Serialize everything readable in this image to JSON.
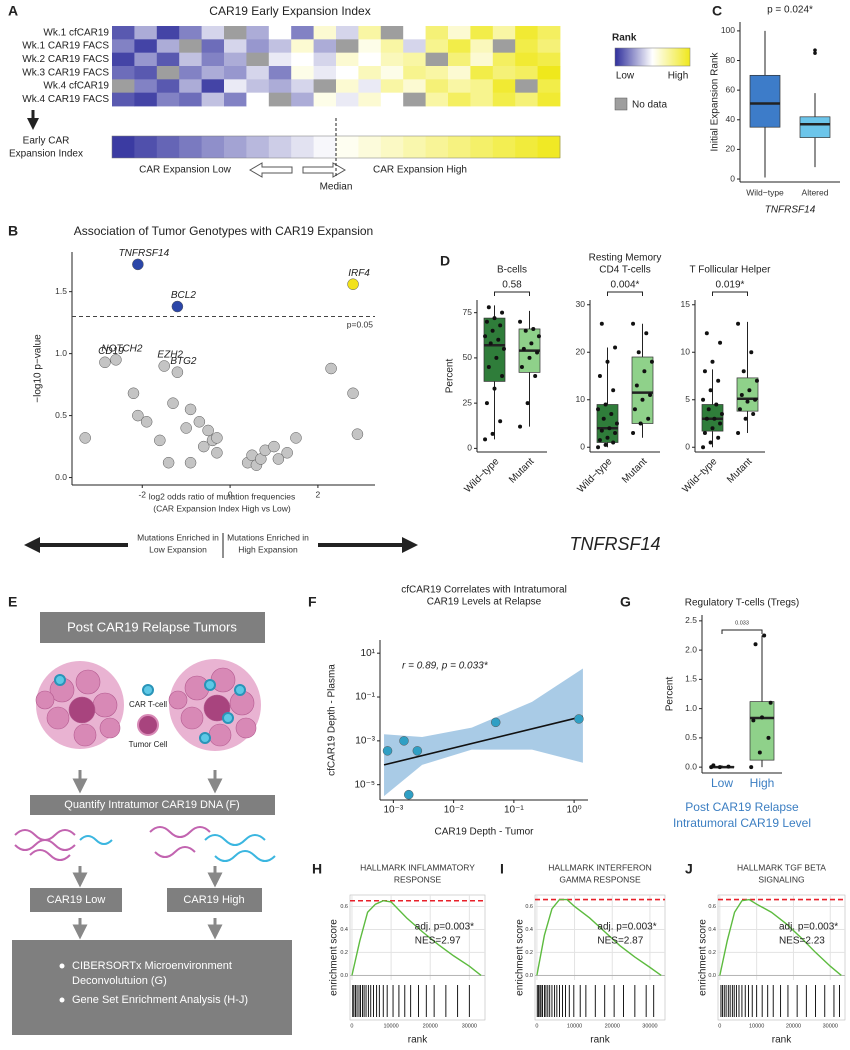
{
  "chart_data": [
    {
      "type": "heatmap",
      "panel": "A",
      "title": "CAR19 Early Expansion Index",
      "rows": [
        {
          "name": "Wk.1 cfCAR19",
          "values": [
            0.1,
            0.3,
            0.05,
            0.2,
            0.4,
            null,
            0.3,
            0.5,
            0.2,
            0.6,
            0.4,
            0.7,
            null,
            0.5,
            0.8,
            0.6,
            0.9,
            0.7,
            0.95,
            0.85
          ]
        },
        {
          "name": "Wk.1 CAR19 FACS",
          "values": [
            0.2,
            0.05,
            0.3,
            null,
            0.15,
            0.4,
            0.25,
            0.35,
            0.6,
            0.3,
            null,
            0.55,
            0.7,
            0.4,
            0.75,
            0.9,
            0.65,
            null,
            0.9,
            0.8
          ]
        },
        {
          "name": "Wk.2 CAR19 FACS",
          "values": [
            0.05,
            0.25,
            0.1,
            0.35,
            0.2,
            0.3,
            null,
            0.45,
            0.5,
            0.4,
            0.6,
            0.5,
            0.65,
            0.7,
            null,
            0.8,
            0.6,
            0.85,
            0.95,
            0.9
          ]
        },
        {
          "name": "Wk.3 CAR19 FACS",
          "values": [
            0.15,
            0.1,
            null,
            0.2,
            0.3,
            0.25,
            0.4,
            0.2,
            0.55,
            0.45,
            0.5,
            0.65,
            0.55,
            0.75,
            0.7,
            0.6,
            0.9,
            0.8,
            0.85,
            1.0
          ]
        },
        {
          "name": "Wk.4 cfCAR19",
          "values": [
            null,
            0.2,
            0.1,
            0.3,
            0.05,
            0.45,
            0.35,
            0.3,
            0.4,
            null,
            0.6,
            0.45,
            0.7,
            0.6,
            0.8,
            0.7,
            0.75,
            0.95,
            null,
            0.9
          ]
        },
        {
          "name": "Wk.4 CAR19 FACS",
          "values": [
            0.1,
            0.05,
            0.2,
            0.15,
            0.35,
            0.2,
            0.5,
            null,
            0.3,
            0.55,
            0.45,
            0.6,
            0.5,
            null,
            0.7,
            0.85,
            0.75,
            0.9,
            0.8,
            0.95
          ]
        }
      ],
      "index": {
        "name": [
          "Early CAR",
          "Expansion Index"
        ],
        "values": [
          0.03,
          0.08,
          0.13,
          0.18,
          0.23,
          0.28,
          0.33,
          0.38,
          0.43,
          0.48,
          0.53,
          0.58,
          0.63,
          0.68,
          0.73,
          0.78,
          0.83,
          0.88,
          0.93,
          0.98
        ]
      },
      "index_labels": {
        "low": "CAR Expansion Low",
        "median": "Median",
        "high": "CAR Expansion High"
      },
      "colors": [
        "#2f2f9c",
        "#ffffff",
        "#efe81c"
      ],
      "nodata_color": "#9e9e9e",
      "legend": {
        "title": "Rank",
        "low": "Low",
        "high": "High",
        "nodata": "No data"
      }
    },
    {
      "type": "box",
      "panel": "C",
      "title": "p = 0.024*",
      "ylabel": "Initial Expansion Rank",
      "xlabel": "TNFRSF14",
      "ylim": [
        -2,
        106
      ],
      "yticks": [
        0,
        20,
        40,
        60,
        80,
        100
      ],
      "groups": [
        {
          "name": "Wild−type",
          "color": "#3d7cc9",
          "stats": {
            "min": 1,
            "q1": 35,
            "median": 51,
            "q3": 70,
            "max": 100
          }
        },
        {
          "name": "Altered",
          "color": "#6cc5ea",
          "stats": {
            "min": 8,
            "q1": 28,
            "median": 37,
            "q3": 42,
            "max": 58
          },
          "outliers": [
            85,
            87
          ]
        }
      ]
    },
    {
      "type": "scatter",
      "panel": "B",
      "title": "Association of Tumor Genotypes with CAR19 Expansion",
      "ylabel": "−log10 p−value",
      "xlabel": [
        "log2 odds ratio of mutation frequencies",
        "(CAR  Expansion Index High vs Low)"
      ],
      "xlim": [
        -3.6,
        3.3
      ],
      "xticks": [
        -2,
        0,
        2
      ],
      "ylim": [
        -0.06,
        1.82
      ],
      "yticks": [
        {
          "value": 0,
          "label": "0.0"
        },
        0.5,
        {
          "value": 1,
          "label": "1.0"
        },
        1.5
      ],
      "threshold": {
        "value": 1.3,
        "label": "p=0.05"
      },
      "x": [
        -2.1,
        -1.2,
        2.8,
        -2.6,
        -2.85,
        -1.5,
        -1.2,
        -3.3,
        -2.2,
        -2.1,
        -1.9,
        -1.6,
        -1.3,
        -1.0,
        -0.9,
        -0.7,
        -0.5,
        -0.4,
        -0.3,
        -0.6,
        -0.9,
        -1.4,
        -0.3,
        0.4,
        0.5,
        0.6,
        0.7,
        0.8,
        1.0,
        1.1,
        1.3,
        1.5,
        2.3,
        2.8,
        2.9
      ],
      "y": [
        1.72,
        1.38,
        1.56,
        0.95,
        0.93,
        0.9,
        0.85,
        0.32,
        0.68,
        0.5,
        0.45,
        0.3,
        0.6,
        0.4,
        0.55,
        0.45,
        0.38,
        0.3,
        0.2,
        0.25,
        0.12,
        0.12,
        0.32,
        0.12,
        0.18,
        0.1,
        0.15,
        0.22,
        0.25,
        0.15,
        0.2,
        0.32,
        0.88,
        0.68,
        0.35
      ],
      "point_labels": [
        "TNFRSF14",
        "BCL2",
        "IRF4",
        "NOTCH2",
        "CD19",
        "EZH2",
        "BTG2",
        null,
        null,
        null,
        null,
        null,
        null,
        null,
        null,
        null,
        null,
        null,
        null,
        null,
        null,
        null,
        null,
        null,
        null,
        null,
        null,
        null,
        null,
        null,
        null,
        null,
        null,
        null,
        null
      ],
      "colors": [
        "#2b46a8",
        "#2b46a8",
        "#f2e21a",
        "#c4c4c4",
        "#c4c4c4",
        "#c4c4c4",
        "#c4c4c4",
        "#c4c4c4",
        "#c4c4c4",
        "#c4c4c4",
        "#c4c4c4",
        "#c4c4c4",
        "#c4c4c4",
        "#c4c4c4",
        "#c4c4c4",
        "#c4c4c4",
        "#c4c4c4",
        "#c4c4c4",
        "#c4c4c4",
        "#c4c4c4",
        "#c4c4c4",
        "#c4c4c4",
        "#c4c4c4",
        "#c4c4c4",
        "#c4c4c4",
        "#c4c4c4",
        "#c4c4c4",
        "#c4c4c4",
        "#c4c4c4",
        "#c4c4c4",
        "#c4c4c4",
        "#c4c4c4",
        "#c4c4c4",
        "#c4c4c4",
        "#c4c4c4"
      ],
      "direction_labels": [
        [
          "Mutations Enriched in",
          "Low Expansion"
        ],
        [
          "Mutations Enriched in",
          "High Expansion"
        ]
      ]
    },
    {
      "type": "box",
      "panel": "D",
      "title": [
        "B-cells"
      ],
      "ylabel": "Percent",
      "p_label": "0.58",
      "ylim": [
        -2,
        82
      ],
      "yticks": [
        0,
        25,
        50,
        75
      ],
      "groups": [
        {
          "name": "Wild−type",
          "color": "#2f7d3a",
          "stats": {
            "min": 5,
            "q1": 37,
            "median": 57,
            "q3": 72,
            "max": 79
          },
          "points": [
            5,
            8,
            15,
            25,
            33,
            40,
            45,
            50,
            55,
            58,
            60,
            62,
            65,
            68,
            70,
            72,
            75,
            78
          ]
        },
        {
          "name": "Mutant",
          "color": "#8fd18a",
          "stats": {
            "min": 12,
            "q1": 42,
            "median": 54,
            "q3": 66,
            "max": 76
          },
          "points": [
            12,
            25,
            40,
            45,
            50,
            53,
            55,
            58,
            62,
            65,
            66,
            70
          ]
        }
      ]
    },
    {
      "type": "box",
      "title": [
        "Resting Memory",
        "CD4 T-cells"
      ],
      "p_label": "0.004*",
      "xlabel": "TNFRSF14",
      "ylim": [
        -1,
        31
      ],
      "yticks": [
        0,
        10,
        20,
        30
      ],
      "groups": [
        {
          "name": "Wild−type",
          "color": "#2f7d3a",
          "stats": {
            "min": 0,
            "q1": 1,
            "median": 4,
            "q3": 9,
            "max": 21
          },
          "points": [
            0,
            0.5,
            1,
            1.5,
            2,
            3,
            3.5,
            4,
            5,
            6,
            7,
            8,
            9,
            12,
            15,
            18,
            21,
            26
          ]
        },
        {
          "name": "Mutant",
          "color": "#8fd18a",
          "stats": {
            "min": 2,
            "q1": 5,
            "median": 11.5,
            "q3": 19,
            "max": 26
          },
          "points": [
            3,
            5,
            6,
            8,
            10,
            11,
            13,
            16,
            18,
            20,
            24,
            26
          ]
        }
      ]
    },
    {
      "type": "box",
      "title": [
        "T Follicular Helper"
      ],
      "p_label": "0.019*",
      "ylim": [
        -0.5,
        15.5
      ],
      "yticks": [
        0,
        5,
        10,
        15
      ],
      "groups": [
        {
          "name": "Wild−type",
          "color": "#2f7d3a",
          "stats": {
            "min": 0,
            "q1": 1.7,
            "median": 3,
            "q3": 4.5,
            "max": 8.2
          },
          "points": [
            0,
            0.5,
            1,
            1.5,
            2,
            2.5,
            3,
            3,
            3.5,
            4,
            4.5,
            5,
            6,
            7,
            8,
            9,
            11,
            12
          ]
        },
        {
          "name": "Mutant",
          "color": "#8fd18a",
          "stats": {
            "min": 1.5,
            "q1": 3.8,
            "median": 5.1,
            "q3": 7.3,
            "max": 13.2
          },
          "points": [
            1.5,
            3,
            3.5,
            4,
            4.8,
            5,
            5.5,
            6,
            7,
            8,
            10,
            13
          ]
        }
      ]
    },
    {
      "type": "scatter",
      "panel": "F",
      "log": true,
      "title": [
        "cfCAR19 Correlates with Intratumoral",
        "CAR19 Levels at Relapse"
      ],
      "ylabel": "cfCAR19 Depth - Plasma",
      "xlabel": [
        "CAR19 Depth - Tumor"
      ],
      "annotation": "r = 0.89, p = 0.033*",
      "xlim": [
        0.0006,
        1.7
      ],
      "xticks": [
        {
          "value": 0.001,
          "label": "10⁻³"
        },
        {
          "value": 0.01,
          "label": "10⁻²"
        },
        {
          "value": 0.1,
          "label": "10⁻¹"
        },
        {
          "value": 1,
          "label": "10⁰"
        }
      ],
      "ylim": [
        2e-06,
        40
      ],
      "yticks": [
        {
          "value": 1e-05,
          "label": "10⁻⁵"
        },
        {
          "value": 0.001,
          "label": "10⁻³"
        },
        {
          "value": 0.1,
          "label": "10⁻¹"
        },
        {
          "value": 10,
          "label": "10¹"
        }
      ],
      "x": [
        0.0008,
        0.0015,
        0.0025,
        0.0018,
        0.05,
        1.2
      ],
      "y": [
        0.00035,
        0.001,
        0.00035,
        3.5e-06,
        0.007,
        0.01
      ],
      "color": "#2f9fc4",
      "fit": {
        "x": [
          0.0007,
          1.4
        ],
        "y": [
          8e-05,
          0.013
        ]
      },
      "band": {
        "x": [
          0.0007,
          0.003,
          0.02,
          0.2,
          1.4
        ],
        "upper": [
          0.002,
          0.0015,
          0.004,
          0.06,
          2
        ],
        "lower": [
          3e-06,
          8e-05,
          0.0004,
          0.0004,
          0.0001
        ],
        "color": "#a9cbe6"
      }
    },
    {
      "type": "box",
      "panel": "G",
      "title": [
        "Regulatory T-cells (Tregs)"
      ],
      "ylabel": "Percent",
      "p_label": "0.033",
      "xlabel": [
        "Post CAR19 Relapse",
        "Intratumoral CAR19 Level"
      ],
      "tick_label_color": "#3b7ec2",
      "ylim": [
        -0.1,
        2.6
      ],
      "yticks": [
        {
          "value": 0,
          "label": "0.0"
        },
        0.5,
        {
          "value": 1,
          "label": "1.0"
        },
        1.5,
        {
          "value": 2,
          "label": "2.0"
        },
        2.5
      ],
      "groups": [
        {
          "name": "Low",
          "color": "#8fd18a",
          "stats": {
            "min": 0,
            "q1": 0,
            "median": 0,
            "q3": 0.01,
            "max": 0.03
          },
          "points": [
            0,
            0,
            0.01,
            0.03
          ]
        },
        {
          "name": "High",
          "color": "#8fd18a",
          "stats": {
            "min": 0,
            "q1": 0.12,
            "median": 0.84,
            "q3": 1.12,
            "max": 2.25
          },
          "points": [
            0,
            0.25,
            0.5,
            0.8,
            0.85,
            1.1,
            2.1,
            2.25
          ]
        }
      ]
    },
    {
      "type": "gsea",
      "panel": "H",
      "title": [
        "HALLMARK INFLAMMATORY",
        "RESPONSE"
      ],
      "annotation": [
        "adj. p=0.003*",
        "NES=2.97"
      ],
      "ylabel": "enrichment score",
      "xlabel": "rank",
      "xlim": [
        -500,
        34000
      ],
      "xticks": [
        0,
        10000,
        20000,
        30000
      ],
      "ylim": [
        -0.04,
        0.7
      ],
      "yticks": [
        {
          "value": 0,
          "label": "0.0"
        },
        0.2,
        0.4,
        0.6
      ],
      "color": "#5dbb3f",
      "rank": [
        0,
        2000,
        4000,
        6000,
        8000,
        10000,
        14000,
        18000,
        22000,
        26000,
        30000,
        33000
      ],
      "es": [
        0,
        0.3,
        0.55,
        0.62,
        0.65,
        0.64,
        0.5,
        0.38,
        0.27,
        0.17,
        0.08,
        0
      ],
      "hits": [
        200,
        500,
        900,
        1300,
        1800,
        2200,
        2700,
        3100,
        3600,
        4200,
        4800,
        5500,
        6300,
        7000,
        8000,
        9000,
        10500,
        12000,
        13500,
        15000,
        17000,
        19000,
        21000,
        24000,
        27000,
        30000
      ]
    },
    {
      "type": "gsea",
      "panel": "I",
      "title": [
        "HALLMARK INTERFERON",
        "GAMMA RESPONSE"
      ],
      "annotation": [
        "adj. p=0.003*",
        "NES=2.87"
      ],
      "ylabel": "enrichment score",
      "xlabel": "rank",
      "xlim": [
        -500,
        34000
      ],
      "xticks": [
        0,
        10000,
        20000,
        30000
      ],
      "ylim": [
        -0.04,
        0.7
      ],
      "yticks": [
        {
          "value": 0,
          "label": "0.0"
        },
        0.2,
        0.4,
        0.6
      ],
      "color": "#5dbb3f",
      "rank": [
        0,
        2000,
        4000,
        6000,
        8000,
        10000,
        14000,
        18000,
        22000,
        26000,
        30000,
        33000
      ],
      "es": [
        0,
        0.35,
        0.58,
        0.66,
        0.66,
        0.6,
        0.5,
        0.38,
        0.26,
        0.16,
        0.07,
        0
      ],
      "hits": [
        100,
        400,
        800,
        1100,
        1500,
        2000,
        2400,
        2900,
        3400,
        4000,
        4700,
        5300,
        6000,
        6800,
        7600,
        8600,
        9800,
        11500,
        13000,
        15500,
        18000,
        20500,
        23000,
        26000,
        29000,
        31000
      ]
    },
    {
      "type": "gsea",
      "panel": "J",
      "title": [
        "HALLMARK TGF BETA",
        "SIGNALING"
      ],
      "annotation": [
        "adj. p=0.003*",
        "NES=2.23"
      ],
      "ylabel": "enrichment score",
      "xlabel": "rank",
      "xlim": [
        -500,
        34000
      ],
      "xticks": [
        0,
        10000,
        20000,
        30000
      ],
      "ylim": [
        -0.04,
        0.7
      ],
      "yticks": [
        {
          "value": 0,
          "label": "0.0"
        },
        0.2,
        0.4,
        0.6
      ],
      "color": "#5dbb3f",
      "rank": [
        0,
        2000,
        4000,
        6000,
        8000,
        10000,
        14000,
        18000,
        22000,
        26000,
        30000,
        33000
      ],
      "es": [
        0,
        0.3,
        0.55,
        0.65,
        0.66,
        0.62,
        0.55,
        0.45,
        0.33,
        0.2,
        0.08,
        0
      ],
      "hits": [
        300,
        700,
        1200,
        1700,
        2300,
        2800,
        3400,
        3900,
        4500,
        5200,
        6000,
        6900,
        7800,
        8800,
        10000,
        11500,
        13000,
        14500,
        16500,
        18500,
        21000,
        23500,
        26000,
        28500,
        31000,
        32500
      ]
    }
  ],
  "diagram": {
    "panel": "E",
    "top": "Post CAR19 Relapse Tumors",
    "car_t": "CAR T-cell",
    "tumor_cell": "Tumor Cell",
    "quantify": "Quantify Intratumor CAR19  DNA (F)",
    "low": "CAR19 Low",
    "high": "CAR19 High",
    "bullets": [
      "CIBERSORTx Microenvironment",
      "Deconvolutuion (G)",
      "Gene Set Enrichment Analysis (H-J)"
    ]
  }
}
